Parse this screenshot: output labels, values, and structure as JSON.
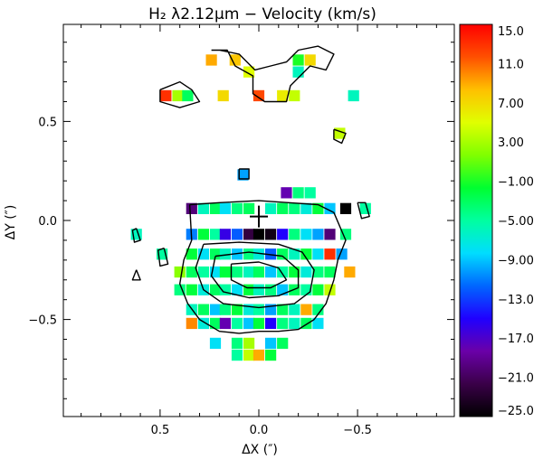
{
  "chart_data": {
    "type": "heatmap",
    "title": "H₂ λ2.12μm − Velocity (km/s)",
    "xlabel": "ΔX (″)",
    "ylabel": "ΔY (″)",
    "xlim": [
      0.99,
      -0.99
    ],
    "ylim": [
      -0.99,
      0.99
    ],
    "xticks": [
      {
        "value": 0.5,
        "label": "0.5"
      },
      {
        "value": 0.0,
        "label": "0.0"
      },
      {
        "value": -0.5,
        "label": "−0.5"
      }
    ],
    "yticks": [
      {
        "value": 0.5,
        "label": "0.5"
      },
      {
        "value": 0.0,
        "label": "0.0"
      },
      {
        "value": -0.5,
        "label": "−0.5"
      }
    ],
    "colorbar": {
      "min": -25,
      "max": 15,
      "labels": [
        "15.0",
        "11.0",
        "7.00",
        "3.00",
        "−1.00",
        "−5.00",
        "−9.00",
        "−13.0",
        "−17.0",
        "−21.0",
        "−25.0"
      ],
      "colors": [
        "#000000",
        "#3a0048",
        "#6a00a8",
        "#2000ff",
        "#0066ff",
        "#00ddff",
        "#00ffa0",
        "#00ff30",
        "#80ff00",
        "#e0ff00",
        "#ffc000",
        "#ff5000",
        "#ff0000"
      ]
    },
    "center_marker": {
      "x": 0.0,
      "y": 0.02
    },
    "pixel_size": 0.056,
    "pixels": [
      [
        0.24,
        0.81,
        9
      ],
      [
        0.12,
        0.81,
        8
      ],
      [
        -0.2,
        0.81,
        -1
      ],
      [
        -0.26,
        0.81,
        7
      ],
      [
        0.05,
        0.75,
        5
      ],
      [
        -0.2,
        0.75,
        -6
      ],
      [
        0.47,
        0.63,
        13
      ],
      [
        0.41,
        0.63,
        3
      ],
      [
        0.36,
        0.63,
        -3
      ],
      [
        0.18,
        0.63,
        7
      ],
      [
        0.0,
        0.63,
        12
      ],
      [
        -0.12,
        0.63,
        6
      ],
      [
        -0.18,
        0.63,
        4
      ],
      [
        -0.48,
        0.63,
        -6
      ],
      [
        -0.41,
        0.44,
        4
      ],
      [
        0.08,
        0.23,
        -10
      ],
      [
        -0.14,
        0.14,
        -18
      ],
      [
        -0.2,
        0.14,
        -4
      ],
      [
        -0.26,
        0.14,
        -5
      ],
      [
        0.34,
        0.06,
        -20
      ],
      [
        0.28,
        0.06,
        -6
      ],
      [
        0.22,
        0.06,
        -3
      ],
      [
        0.17,
        0.06,
        -8
      ],
      [
        0.11,
        0.06,
        -4
      ],
      [
        0.05,
        0.06,
        -3
      ],
      [
        -0.06,
        0.06,
        -6
      ],
      [
        -0.12,
        0.06,
        -3
      ],
      [
        -0.18,
        0.06,
        -4
      ],
      [
        -0.24,
        0.06,
        -7
      ],
      [
        -0.3,
        0.06,
        -2
      ],
      [
        -0.36,
        0.06,
        -9
      ],
      [
        -0.44,
        0.06,
        -25
      ],
      [
        -0.54,
        0.06,
        -5
      ],
      [
        0.62,
        -0.07,
        -6
      ],
      [
        0.34,
        -0.07,
        -11
      ],
      [
        0.28,
        -0.07,
        -2
      ],
      [
        0.22,
        -0.07,
        -5
      ],
      [
        0.17,
        -0.07,
        -16
      ],
      [
        0.11,
        -0.07,
        -12
      ],
      [
        0.05,
        -0.07,
        -22
      ],
      [
        0.0,
        -0.07,
        -25
      ],
      [
        -0.06,
        -0.07,
        -24
      ],
      [
        -0.12,
        -0.07,
        -15
      ],
      [
        -0.18,
        -0.07,
        -4
      ],
      [
        -0.24,
        -0.07,
        -8
      ],
      [
        -0.3,
        -0.07,
        -10
      ],
      [
        -0.36,
        -0.07,
        -20
      ],
      [
        -0.44,
        -0.07,
        -4
      ],
      [
        0.49,
        -0.17,
        -5
      ],
      [
        0.34,
        -0.17,
        -2
      ],
      [
        0.28,
        -0.17,
        -8
      ],
      [
        0.22,
        -0.17,
        -3
      ],
      [
        0.17,
        -0.17,
        -6
      ],
      [
        0.11,
        -0.17,
        -9
      ],
      [
        0.05,
        -0.17,
        -4
      ],
      [
        0.0,
        -0.17,
        -7
      ],
      [
        -0.06,
        -0.17,
        -12
      ],
      [
        -0.12,
        -0.17,
        -3
      ],
      [
        -0.18,
        -0.17,
        -6
      ],
      [
        -0.24,
        -0.17,
        -2
      ],
      [
        -0.3,
        -0.17,
        -8
      ],
      [
        -0.36,
        -0.17,
        13
      ],
      [
        -0.42,
        -0.17,
        -10
      ],
      [
        0.4,
        -0.26,
        2
      ],
      [
        0.34,
        -0.26,
        -3
      ],
      [
        0.28,
        -0.26,
        -5
      ],
      [
        0.22,
        -0.26,
        -8
      ],
      [
        0.17,
        -0.26,
        -2
      ],
      [
        0.11,
        -0.26,
        -4
      ],
      [
        0.05,
        -0.26,
        -6
      ],
      [
        0.0,
        -0.26,
        -3
      ],
      [
        -0.06,
        -0.26,
        -9
      ],
      [
        -0.12,
        -0.26,
        -5
      ],
      [
        -0.18,
        -0.26,
        -2
      ],
      [
        -0.24,
        -0.26,
        -7
      ],
      [
        -0.3,
        -0.26,
        -4
      ],
      [
        -0.36,
        -0.26,
        -3
      ],
      [
        -0.46,
        -0.26,
        9
      ],
      [
        0.4,
        -0.35,
        -4
      ],
      [
        0.34,
        -0.35,
        -2
      ],
      [
        0.28,
        -0.35,
        -7
      ],
      [
        0.22,
        -0.35,
        -3
      ],
      [
        0.17,
        -0.35,
        -5
      ],
      [
        0.11,
        -0.35,
        -8
      ],
      [
        0.05,
        -0.35,
        -2
      ],
      [
        0.0,
        -0.35,
        -6
      ],
      [
        -0.06,
        -0.35,
        -4
      ],
      [
        -0.12,
        -0.35,
        -9
      ],
      [
        -0.18,
        -0.35,
        -3
      ],
      [
        -0.24,
        -0.35,
        -5
      ],
      [
        -0.3,
        -0.35,
        -2
      ],
      [
        -0.36,
        -0.35,
        4
      ],
      [
        0.34,
        -0.45,
        -6
      ],
      [
        0.28,
        -0.45,
        -3
      ],
      [
        0.22,
        -0.45,
        -9
      ],
      [
        0.17,
        -0.45,
        -4
      ],
      [
        0.11,
        -0.45,
        -2
      ],
      [
        0.05,
        -0.45,
        -7
      ],
      [
        0.0,
        -0.45,
        -5
      ],
      [
        -0.06,
        -0.45,
        -10
      ],
      [
        -0.12,
        -0.45,
        -3
      ],
      [
        -0.18,
        -0.45,
        -6
      ],
      [
        -0.24,
        -0.45,
        9
      ],
      [
        -0.3,
        -0.45,
        -4
      ],
      [
        0.34,
        -0.52,
        10
      ],
      [
        0.28,
        -0.52,
        -7
      ],
      [
        0.22,
        -0.52,
        -3
      ],
      [
        0.17,
        -0.52,
        -18
      ],
      [
        0.11,
        -0.52,
        -5
      ],
      [
        0.05,
        -0.52,
        -9
      ],
      [
        0.0,
        -0.52,
        -2
      ],
      [
        -0.06,
        -0.52,
        -15
      ],
      [
        -0.12,
        -0.52,
        -4
      ],
      [
        -0.18,
        -0.52,
        -6
      ],
      [
        -0.24,
        -0.52,
        -3
      ],
      [
        -0.3,
        -0.52,
        -8
      ],
      [
        0.22,
        -0.62,
        -8
      ],
      [
        0.11,
        -0.62,
        -4
      ],
      [
        0.05,
        -0.62,
        3
      ],
      [
        -0.06,
        -0.62,
        -9
      ],
      [
        -0.12,
        -0.62,
        -3
      ],
      [
        0.11,
        -0.68,
        -5
      ],
      [
        0.05,
        -0.68,
        4
      ],
      [
        0.0,
        -0.68,
        9
      ],
      [
        -0.06,
        -0.68,
        -2
      ]
    ],
    "contours": [
      [
        [
          0.24,
          0.86
        ],
        [
          0.16,
          0.86
        ],
        [
          0.12,
          0.78
        ],
        [
          0.03,
          0.73
        ],
        [
          0.03,
          0.64
        ],
        [
          -0.03,
          0.6
        ],
        [
          -0.14,
          0.6
        ],
        [
          -0.16,
          0.68
        ],
        [
          -0.26,
          0.78
        ],
        [
          -0.34,
          0.76
        ],
        [
          -0.38,
          0.84
        ],
        [
          -0.3,
          0.88
        ],
        [
          -0.2,
          0.86
        ],
        [
          -0.14,
          0.8
        ],
        [
          -0.06,
          0.78
        ],
        [
          0.02,
          0.76
        ],
        [
          0.1,
          0.84
        ],
        [
          0.2,
          0.86
        ],
        [
          0.24,
          0.86
        ]
      ],
      [
        [
          0.5,
          0.66
        ],
        [
          0.4,
          0.7
        ],
        [
          0.34,
          0.66
        ],
        [
          0.3,
          0.6
        ],
        [
          0.4,
          0.57
        ],
        [
          0.5,
          0.6
        ],
        [
          0.5,
          0.66
        ]
      ],
      [
        [
          -0.38,
          0.46
        ],
        [
          -0.44,
          0.44
        ],
        [
          -0.42,
          0.39
        ],
        [
          -0.38,
          0.41
        ],
        [
          -0.38,
          0.46
        ]
      ],
      [
        [
          0.1,
          0.26
        ],
        [
          0.05,
          0.26
        ],
        [
          0.05,
          0.21
        ],
        [
          0.1,
          0.21
        ],
        [
          0.1,
          0.26
        ]
      ],
      [
        [
          0.35,
          0.08
        ],
        [
          0.2,
          0.09
        ],
        [
          0.0,
          0.1
        ],
        [
          -0.15,
          0.09
        ],
        [
          -0.3,
          0.08
        ],
        [
          -0.38,
          0.04
        ],
        [
          -0.44,
          -0.1
        ],
        [
          -0.4,
          -0.2
        ],
        [
          -0.38,
          -0.3
        ],
        [
          -0.34,
          -0.42
        ],
        [
          -0.28,
          -0.5
        ],
        [
          -0.2,
          -0.55
        ],
        [
          -0.1,
          -0.56
        ],
        [
          0.0,
          -0.56
        ],
        [
          0.1,
          -0.57
        ],
        [
          0.2,
          -0.56
        ],
        [
          0.3,
          -0.5
        ],
        [
          0.36,
          -0.42
        ],
        [
          0.4,
          -0.32
        ],
        [
          0.38,
          -0.2
        ],
        [
          0.34,
          -0.1
        ],
        [
          0.35,
          0.08
        ]
      ],
      [
        [
          0.28,
          -0.12
        ],
        [
          0.1,
          -0.11
        ],
        [
          -0.1,
          -0.12
        ],
        [
          -0.22,
          -0.16
        ],
        [
          -0.28,
          -0.25
        ],
        [
          -0.26,
          -0.36
        ],
        [
          -0.18,
          -0.42
        ],
        [
          0.0,
          -0.44
        ],
        [
          0.18,
          -0.42
        ],
        [
          0.28,
          -0.35
        ],
        [
          0.32,
          -0.24
        ],
        [
          0.28,
          -0.12
        ]
      ],
      [
        [
          0.22,
          -0.18
        ],
        [
          0.05,
          -0.16
        ],
        [
          -0.12,
          -0.18
        ],
        [
          -0.2,
          -0.25
        ],
        [
          -0.2,
          -0.34
        ],
        [
          -0.1,
          -0.38
        ],
        [
          0.05,
          -0.39
        ],
        [
          0.18,
          -0.36
        ],
        [
          0.24,
          -0.28
        ],
        [
          0.22,
          -0.18
        ]
      ],
      [
        [
          0.14,
          -0.22
        ],
        [
          0.0,
          -0.21
        ],
        [
          -0.1,
          -0.24
        ],
        [
          -0.14,
          -0.3
        ],
        [
          -0.06,
          -0.34
        ],
        [
          0.06,
          -0.34
        ],
        [
          0.14,
          -0.3
        ],
        [
          0.14,
          -0.22
        ]
      ],
      [
        [
          0.62,
          -0.04
        ],
        [
          0.6,
          -0.1
        ],
        [
          0.63,
          -0.11
        ],
        [
          0.64,
          -0.05
        ],
        [
          0.62,
          -0.04
        ]
      ],
      [
        [
          0.48,
          -0.14
        ],
        [
          0.46,
          -0.22
        ],
        [
          0.5,
          -0.23
        ],
        [
          0.51,
          -0.15
        ],
        [
          0.48,
          -0.14
        ]
      ],
      [
        [
          0.62,
          -0.25
        ],
        [
          0.64,
          -0.3
        ],
        [
          0.6,
          -0.3
        ],
        [
          0.62,
          -0.25
        ]
      ],
      [
        [
          -0.5,
          0.09
        ],
        [
          -0.52,
          0.01
        ],
        [
          -0.56,
          0.02
        ],
        [
          -0.54,
          0.09
        ],
        [
          -0.5,
          0.09
        ]
      ]
    ]
  }
}
